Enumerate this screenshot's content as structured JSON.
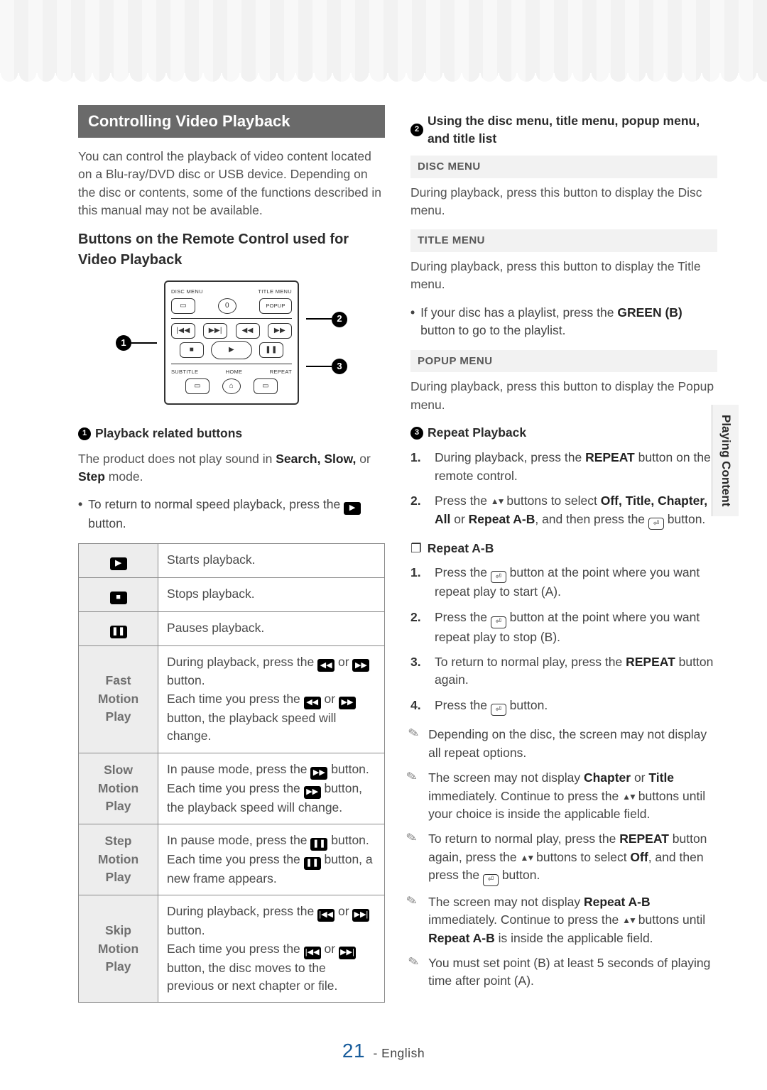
{
  "section_title": "Controlling Video Playback",
  "intro": "You can control the playback of video content located on a Blu-ray/DVD disc or USB device. Depending on the disc or contents, some of the functions described in this manual may not be available.",
  "subsection_title": "Buttons on the Remote Control used for Video Playback",
  "remote": {
    "labels_top": [
      "DISC MENU",
      "TITLE MENU"
    ],
    "zero": "0",
    "popup_btn": "POPUP",
    "labels_bottom": [
      "SUBTITLE",
      "HOME",
      "REPEAT"
    ]
  },
  "callout1": {
    "num": "1",
    "title": "Playback related buttons"
  },
  "callout1_body": "The product does not play sound in ",
  "callout1_bold": "Search, Slow,",
  "callout1_body2": " or ",
  "callout1_bold2": "Step",
  "callout1_body3": " mode.",
  "callout1_bullet": "To return to normal speed playback, press the ",
  "callout1_bullet2": " button.",
  "table": {
    "rows": [
      {
        "icon": "play",
        "label": "",
        "desc": "Starts playback."
      },
      {
        "icon": "stop",
        "label": "",
        "desc": "Stops playback."
      },
      {
        "icon": "pause",
        "label": "",
        "desc": "Pauses playback."
      },
      {
        "icon": "",
        "label": "Fast Motion Play",
        "desc_parts": [
          "During playback, press the ",
          "◀◀",
          " or ",
          "▶▶",
          " button.",
          "Each time you press the ",
          "◀◀",
          " or ",
          "▶▶",
          " button, the playback speed will change."
        ]
      },
      {
        "icon": "",
        "label": "Slow Motion Play",
        "desc_parts": [
          "In pause mode, press the ",
          "▶▶",
          " button.",
          "Each time you press the ",
          "▶▶",
          " button, the playback speed will change."
        ]
      },
      {
        "icon": "",
        "label": "Step Motion Play",
        "desc_parts": [
          "In pause mode, press the ",
          "❚❚",
          " button.",
          "Each time you press the ",
          "❚❚",
          " button, a new frame appears."
        ]
      },
      {
        "icon": "",
        "label": "Skip Motion Play",
        "desc_parts": [
          "During playback, press the ",
          "|◀◀",
          " or ",
          "▶▶|",
          " button.",
          "Each time you press the ",
          "|◀◀",
          " or ",
          "▶▶|",
          " button, the disc moves to the previous or next chapter or file."
        ]
      }
    ]
  },
  "callout2": {
    "num": "2",
    "title": "Using the disc menu, title menu, popup menu, and title list"
  },
  "disc_menu": {
    "hdr": "DISC MENU",
    "body": "During playback, press this button to display the Disc menu."
  },
  "title_menu": {
    "hdr": "TITLE MENU",
    "body": "During playback, press this button to display the Title menu.",
    "bullet_a": "If your disc has a playlist, press the ",
    "bullet_b": "GREEN (B)",
    "bullet_c": " button to go to the playlist."
  },
  "popup_menu": {
    "hdr": "POPUP MENU",
    "body": "During playback, press this button to display the Popup menu."
  },
  "callout3": {
    "num": "3",
    "title": "Repeat Playback"
  },
  "repeat_steps": {
    "s1_a": "During playback, press the ",
    "s1_b": "REPEAT",
    "s1_c": " button on the remote control.",
    "s2_a": "Press the ",
    "s2_b": " buttons to select ",
    "s2_c": "Off, Title, Chapter, All",
    "s2_d": " or ",
    "s2_e": "Repeat A-B",
    "s2_f": ", and then press the ",
    "s2_g": " button."
  },
  "repeat_ab": {
    "hdr": "Repeat A-B",
    "s1_a": "Press the ",
    "s1_b": " button at the point where you want repeat play to start (A).",
    "s2_a": "Press the ",
    "s2_b": " button at the point where you want repeat play to stop (B).",
    "s3_a": "To return to normal play, press the ",
    "s3_b": "REPEAT",
    "s3_c": " button again.",
    "s4_a": "Press the ",
    "s4_b": " button."
  },
  "notes": {
    "n1": "Depending on the disc, the screen may not display all repeat options.",
    "n2_a": "The screen may not display ",
    "n2_b": "Chapter",
    "n2_c": " or ",
    "n2_d": "Title",
    "n2_e": " immediately. Continue to press the ",
    "n2_f": " buttons until your choice is inside the applicable field.",
    "n3_a": "To return to normal play, press the ",
    "n3_b": "REPEAT",
    "n3_c": " button again, press the ",
    "n3_d": " buttons to select ",
    "n3_e": "Off",
    "n3_f": ", and then press the ",
    "n3_g": " button.",
    "n4_a": "The screen may not display ",
    "n4_b": "Repeat A-B",
    "n4_c": " immediately. Continue to press the ",
    "n4_d": " buttons until ",
    "n4_e": "Repeat A-B",
    "n4_f": " is inside the applicable field.",
    "n5": "You must set point (B) at least 5 seconds of playing time after point (A)."
  },
  "side_tab": "Playing Content",
  "page_num": "21",
  "page_lang": "English",
  "colors": {
    "header_bg": "#6a6a6a",
    "header_fg": "#ffffff",
    "body_text": "#525252",
    "border": "#8a8a8a",
    "row_label_bg": "#ededed",
    "accent_num": "#185c9b"
  }
}
